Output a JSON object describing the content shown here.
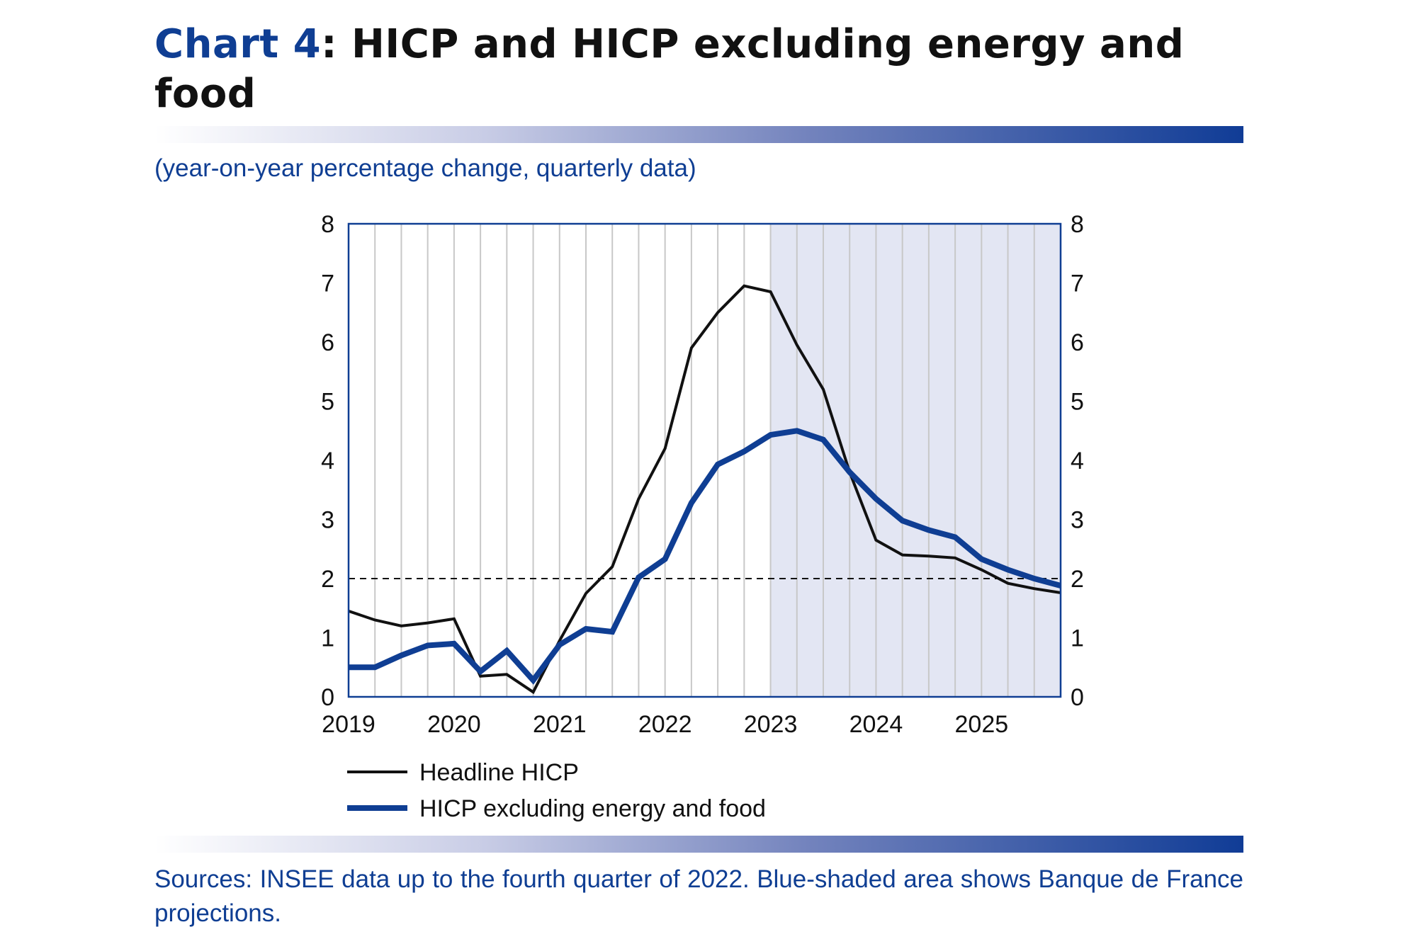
{
  "header": {
    "title_number": "Chart 4",
    "title_text": ": HICP and HICP excluding energy and food"
  },
  "subtitle": "(year-on-year percentage change, quarterly data)",
  "source": "Sources: INSEE data up to the fourth quarter of 2022. Blue-shaded area shows Banque de France projections.",
  "colors": {
    "headline": "#111111",
    "core": "#0f3e93",
    "projection_shade": "#e3e6f3",
    "grid": "#c8c8c8",
    "frame": "#0f3e93"
  },
  "chart_data": {
    "type": "line",
    "x_unit": "quarter",
    "x_range": [
      "2019Q1",
      "2025Q4"
    ],
    "x_tick_labels": [
      "2019",
      "2020",
      "2021",
      "2022",
      "2023",
      "2024",
      "2025"
    ],
    "x": [
      "2019Q1",
      "2019Q2",
      "2019Q3",
      "2019Q4",
      "2020Q1",
      "2020Q2",
      "2020Q3",
      "2020Q4",
      "2021Q1",
      "2021Q2",
      "2021Q3",
      "2021Q4",
      "2022Q1",
      "2022Q2",
      "2022Q3",
      "2022Q4",
      "2023Q1",
      "2023Q2",
      "2023Q3",
      "2023Q4",
      "2024Q1",
      "2024Q2",
      "2024Q3",
      "2024Q4",
      "2025Q1",
      "2025Q2",
      "2025Q3",
      "2025Q4"
    ],
    "ylim": [
      0,
      8
    ],
    "y_ticks": [
      0,
      1,
      2,
      3,
      4,
      5,
      6,
      7,
      8
    ],
    "secondary_y_axis": true,
    "grid": "vertical lines at each quarter",
    "reference_line": {
      "y": 2,
      "style": "dashed"
    },
    "projection_shading": {
      "from": "2023Q1",
      "to": "2025Q4"
    },
    "series": [
      {
        "name": "Headline HICP",
        "values": [
          1.45,
          1.3,
          1.2,
          1.25,
          1.32,
          0.35,
          0.38,
          0.08,
          0.95,
          1.75,
          2.2,
          3.35,
          4.2,
          5.9,
          6.5,
          6.95,
          6.85,
          5.95,
          5.2,
          3.8,
          2.65,
          2.4,
          2.38,
          2.35,
          2.15,
          1.92,
          1.83,
          1.76
        ]
      },
      {
        "name": "HICP excluding energy and food",
        "values": [
          0.5,
          0.5,
          0.7,
          0.87,
          0.9,
          0.43,
          0.78,
          0.28,
          0.88,
          1.15,
          1.1,
          2.02,
          2.33,
          3.28,
          3.93,
          4.15,
          4.43,
          4.5,
          4.35,
          3.8,
          3.35,
          2.98,
          2.82,
          2.7,
          2.33,
          2.15,
          2.0,
          1.88
        ]
      }
    ],
    "legend_position": "below"
  }
}
